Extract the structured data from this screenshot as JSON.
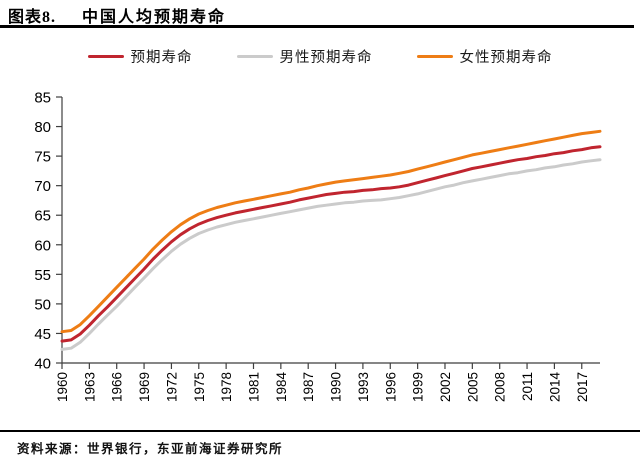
{
  "header": {
    "prefix": "图表8.",
    "title": "中国人均预期寿命"
  },
  "legend": [
    {
      "label": "预期寿命",
      "color": "#C0252F"
    },
    {
      "label": "男性预期寿命",
      "color": "#CBCBCB"
    },
    {
      "label": "女性预期寿命",
      "color": "#EE7D15"
    }
  ],
  "source": "资料来源：世界银行，东亚前海证券研究所",
  "chart_data": {
    "type": "line",
    "title": "中国人均预期寿命",
    "xlabel": "",
    "ylabel": "",
    "ylim": [
      40,
      85
    ],
    "ytick_step": 5,
    "grid": false,
    "legend_position": "top",
    "axis_color": "#3f3f3f",
    "x": [
      1960,
      1961,
      1962,
      1963,
      1964,
      1965,
      1966,
      1967,
      1968,
      1969,
      1970,
      1971,
      1972,
      1973,
      1974,
      1975,
      1976,
      1977,
      1978,
      1979,
      1980,
      1981,
      1982,
      1983,
      1984,
      1985,
      1986,
      1987,
      1988,
      1989,
      1990,
      1991,
      1992,
      1993,
      1994,
      1995,
      1996,
      1997,
      1998,
      1999,
      2000,
      2001,
      2002,
      2003,
      2004,
      2005,
      2006,
      2007,
      2008,
      2009,
      2010,
      2011,
      2012,
      2013,
      2014,
      2015,
      2016,
      2017,
      2018,
      2019
    ],
    "xticks": [
      1960,
      1963,
      1966,
      1969,
      1972,
      1975,
      1978,
      1981,
      1984,
      1987,
      1990,
      1993,
      1996,
      1999,
      2002,
      2005,
      2008,
      2011,
      2014,
      2017
    ],
    "series": [
      {
        "name": "预期寿命",
        "color": "#C0252F",
        "width": 3,
        "values": [
          43.7,
          43.9,
          44.9,
          46.4,
          48.0,
          49.5,
          51.1,
          52.7,
          54.3,
          55.9,
          57.6,
          59.1,
          60.5,
          61.7,
          62.7,
          63.5,
          64.1,
          64.6,
          65.0,
          65.4,
          65.7,
          66.0,
          66.3,
          66.6,
          66.9,
          67.2,
          67.6,
          67.9,
          68.2,
          68.5,
          68.7,
          68.9,
          69.0,
          69.2,
          69.3,
          69.5,
          69.6,
          69.8,
          70.1,
          70.5,
          70.9,
          71.3,
          71.7,
          72.1,
          72.5,
          72.9,
          73.2,
          73.5,
          73.8,
          74.1,
          74.4,
          74.6,
          74.9,
          75.1,
          75.4,
          75.6,
          75.9,
          76.1,
          76.4,
          76.6
        ]
      },
      {
        "name": "男性预期寿命",
        "color": "#CBCBCB",
        "width": 3,
        "values": [
          42.3,
          42.5,
          43.5,
          45.0,
          46.6,
          48.1,
          49.6,
          51.2,
          52.8,
          54.4,
          56.0,
          57.5,
          58.9,
          60.1,
          61.1,
          61.9,
          62.5,
          63.0,
          63.4,
          63.8,
          64.1,
          64.4,
          64.7,
          65.0,
          65.3,
          65.6,
          65.9,
          66.2,
          66.5,
          66.7,
          66.9,
          67.1,
          67.2,
          67.4,
          67.5,
          67.6,
          67.8,
          68.0,
          68.3,
          68.6,
          69.0,
          69.4,
          69.8,
          70.1,
          70.5,
          70.8,
          71.1,
          71.4,
          71.7,
          72.0,
          72.2,
          72.5,
          72.7,
          73.0,
          73.2,
          73.5,
          73.7,
          74.0,
          74.2,
          74.4
        ]
      },
      {
        "name": "女性预期寿命",
        "color": "#EE7D15",
        "width": 3,
        "values": [
          45.3,
          45.5,
          46.5,
          48.0,
          49.6,
          51.2,
          52.8,
          54.4,
          56.0,
          57.6,
          59.3,
          60.8,
          62.2,
          63.4,
          64.4,
          65.2,
          65.8,
          66.3,
          66.7,
          67.1,
          67.4,
          67.7,
          68.0,
          68.3,
          68.6,
          68.9,
          69.3,
          69.6,
          70.0,
          70.3,
          70.6,
          70.8,
          71.0,
          71.2,
          71.4,
          71.6,
          71.8,
          72.1,
          72.4,
          72.8,
          73.2,
          73.6,
          74.0,
          74.4,
          74.8,
          75.2,
          75.5,
          75.8,
          76.1,
          76.4,
          76.7,
          77.0,
          77.3,
          77.6,
          77.9,
          78.2,
          78.5,
          78.8,
          79.0,
          79.2
        ]
      }
    ]
  }
}
